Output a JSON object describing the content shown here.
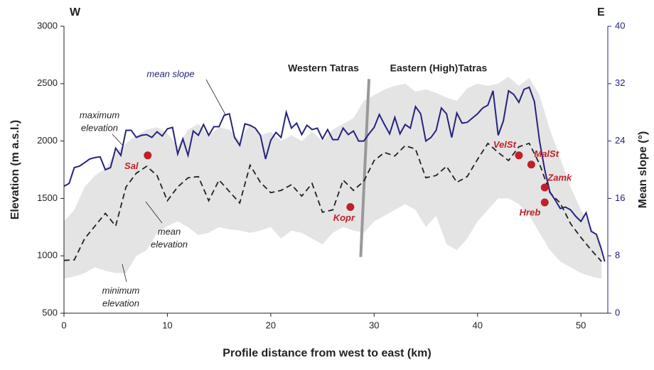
{
  "chart_data": {
    "type": "line",
    "side_labels": [
      "W",
      "E"
    ],
    "x_label": "Profile distance from west to east (km)",
    "y_label": "Elevation (m a.s.l.)",
    "y2_label": "Mean slope (°)",
    "xlim": [
      0,
      52.6
    ],
    "xticks": [
      0,
      10,
      20,
      30,
      40,
      50
    ],
    "ylim": [
      500,
      3000
    ],
    "yticks": [
      500,
      1000,
      1500,
      2000,
      2500,
      3000
    ],
    "y2lim": [
      0,
      40
    ],
    "y2ticks": [
      0,
      8,
      16,
      24,
      32,
      40
    ],
    "band_color": "#e4e4e4",
    "x": [
      0,
      1,
      2,
      3,
      4,
      5,
      6,
      7,
      8,
      9,
      10,
      11,
      12,
      13,
      14,
      15,
      16,
      17,
      18,
      19,
      20,
      21,
      22,
      23,
      24,
      25,
      26,
      27,
      28,
      29,
      30,
      31,
      32,
      33,
      34,
      35,
      36,
      37,
      38,
      39,
      40,
      41,
      42,
      43,
      44,
      45,
      46,
      47,
      48,
      49,
      50,
      51,
      52
    ],
    "series": [
      {
        "name": "mean slope",
        "label": [
          "mean slope"
        ],
        "color": "#25237e",
        "axis": "y2",
        "x": [
          0,
          0.5,
          1,
          1.5,
          2,
          2.5,
          3,
          3.5,
          4,
          4.5,
          5,
          5.5,
          6,
          6.5,
          7,
          7.5,
          8,
          8.5,
          9,
          9.5,
          10,
          10.5,
          11,
          11.5,
          12,
          12.5,
          13,
          13.5,
          14,
          14.5,
          15,
          15.5,
          16,
          16.5,
          17,
          17.5,
          18,
          18.5,
          19,
          19.5,
          20,
          20.5,
          21,
          21.5,
          22,
          22.5,
          23,
          23.5,
          24,
          24.5,
          25,
          25.5,
          26,
          26.5,
          27,
          27.5,
          28,
          28.5,
          29,
          29.5,
          30,
          30.5,
          31,
          31.5,
          32,
          32.5,
          33,
          33.5,
          34,
          34.5,
          35,
          35.5,
          36,
          36.5,
          37,
          37.5,
          38,
          38.5,
          39,
          39.5,
          40,
          40.5,
          41,
          41.5,
          42,
          42.5,
          43,
          43.5,
          44,
          44.5,
          45,
          45.5,
          46,
          46.5,
          47,
          47.5,
          48,
          48.5,
          49,
          49.5,
          50,
          50.5,
          51,
          51.5,
          52,
          52.3
        ],
        "values": [
          17.7,
          18.1,
          20.3,
          20.5,
          21.0,
          21.5,
          21.7,
          21.8,
          20.0,
          20.3,
          23.0,
          22.0,
          25.5,
          25.5,
          24.5,
          24.8,
          24.9,
          24.5,
          25.3,
          24.7,
          25.7,
          25.9,
          22.2,
          24.3,
          22.0,
          25.4,
          24.8,
          26.3,
          24.8,
          26.0,
          26.0,
          27.6,
          27.8,
          24.5,
          23.4,
          26.4,
          26.2,
          25.8,
          24.8,
          21.5,
          24.1,
          25.2,
          24.5,
          28.0,
          25.8,
          26.5,
          24.9,
          26.2,
          25.6,
          25.8,
          24.3,
          25.6,
          24.2,
          24.2,
          25.8,
          24.9,
          25.4,
          24.0,
          24.0,
          25.0,
          25.9,
          27.7,
          26.3,
          25.0,
          27.3,
          25.0,
          26.3,
          25.8,
          28.8,
          27.8,
          24.0,
          24.5,
          25.5,
          28.6,
          27.8,
          24.5,
          27.9,
          26.5,
          26.6,
          27.2,
          27.8,
          28.6,
          29.0,
          31.0,
          24.8,
          26.8,
          31.0,
          30.5,
          29.4,
          31.2,
          31.5,
          29.5,
          24.0,
          20.0,
          16.9,
          15.8,
          14.6,
          14.8,
          14.4,
          13.5,
          12.8,
          14.0,
          11.4,
          11.0,
          8.8,
          7.2
        ]
      },
      {
        "name": "mean elevation",
        "label": [
          "mean",
          "elevation"
        ],
        "color": "#222222",
        "dashed": true,
        "values": [
          960,
          965,
          1150,
          1260,
          1370,
          1260,
          1600,
          1720,
          1780,
          1700,
          1480,
          1600,
          1680,
          1690,
          1480,
          1660,
          1560,
          1460,
          1790,
          1640,
          1550,
          1570,
          1620,
          1520,
          1630,
          1380,
          1400,
          1660,
          1570,
          1650,
          1830,
          1900,
          1870,
          1960,
          1930,
          1680,
          1700,
          1780,
          1640,
          1690,
          1840,
          1980,
          1900,
          1830,
          1950,
          1980,
          1800,
          1550,
          1460,
          1280,
          1160,
          1050,
          950
        ]
      },
      {
        "name": "maximum elevation",
        "label": [
          "maximum",
          "elevation"
        ],
        "values": [
          1300,
          1400,
          1600,
          1700,
          1760,
          1900,
          1980,
          2050,
          2100,
          2120,
          2070,
          1950,
          2100,
          2150,
          2050,
          2120,
          2100,
          2000,
          2150,
          2050,
          2080,
          2000,
          2050,
          2000,
          2080,
          2000,
          2100,
          2150,
          2200,
          2350,
          2400,
          2450,
          2480,
          2500,
          2430,
          2450,
          2420,
          2380,
          2350,
          2460,
          2500,
          2480,
          2500,
          2560,
          2480,
          2550,
          2400,
          2100,
          1850,
          1600,
          1400,
          1250,
          1100
        ]
      },
      {
        "name": "minimum elevation",
        "label": [
          "minimum",
          "elevation"
        ],
        "values": [
          800,
          820,
          850,
          900,
          870,
          850,
          850,
          1000,
          1050,
          1200,
          1260,
          1300,
          1250,
          1180,
          1200,
          1250,
          1230,
          1220,
          1200,
          1220,
          1250,
          1150,
          1220,
          1200,
          1150,
          1100,
          1200,
          1250,
          1220,
          1200,
          1300,
          1350,
          1400,
          1450,
          1400,
          1250,
          1350,
          1100,
          1050,
          1150,
          1300,
          1400,
          1500,
          1500,
          1450,
          1350,
          1200,
          1050,
          950,
          900,
          850,
          820,
          800
        ]
      }
    ],
    "sites": {
      "color": "#c0202a",
      "names": [
        "Sal",
        "Kopr",
        "VelSt",
        "MalSt",
        "Zamk",
        "Hreb"
      ],
      "x": [
        8.1,
        27.7,
        44,
        45.2,
        46.5,
        46.5
      ],
      "values": [
        1875,
        1425,
        1875,
        1795,
        1595,
        1465
      ]
    },
    "regions": [
      "Western Tatras",
      "Eastern (High)Tatras"
    ],
    "divider": {
      "color": "#999999",
      "x": [
        29.5,
        28.7
      ],
      "values": [
        2540,
        990
      ]
    }
  }
}
